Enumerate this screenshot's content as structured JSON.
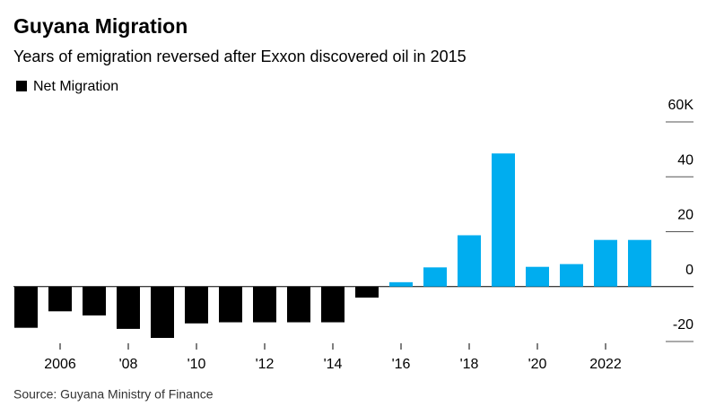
{
  "chart_data": {
    "type": "bar",
    "title": "Guyana Migration",
    "subtitle": "Years of emigration reversed after Exxon discovered oil in 2015",
    "source": "Source: Guyana Ministry of Finance",
    "categories": [
      null,
      "2006",
      null,
      "'08",
      null,
      "'10",
      null,
      "'12",
      null,
      "'14",
      null,
      "'16",
      null,
      "'18",
      null,
      "'20",
      null,
      "2022",
      null
    ],
    "series": [
      {
        "name": "Net Migration",
        "color": "#000000",
        "positive_color": "#00adef",
        "values": [
          -15,
          -9,
          -10.5,
          -15.4,
          -18.7,
          -13.4,
          -13,
          -13,
          -13,
          -13,
          -4,
          1.6,
          7,
          18.7,
          48.5,
          7.2,
          8.2,
          17,
          17
        ]
      }
    ],
    "ylim": [
      -20,
      60
    ],
    "yticks": [
      {
        "value": 60,
        "label": "60K"
      },
      40,
      20,
      0,
      -20
    ]
  }
}
